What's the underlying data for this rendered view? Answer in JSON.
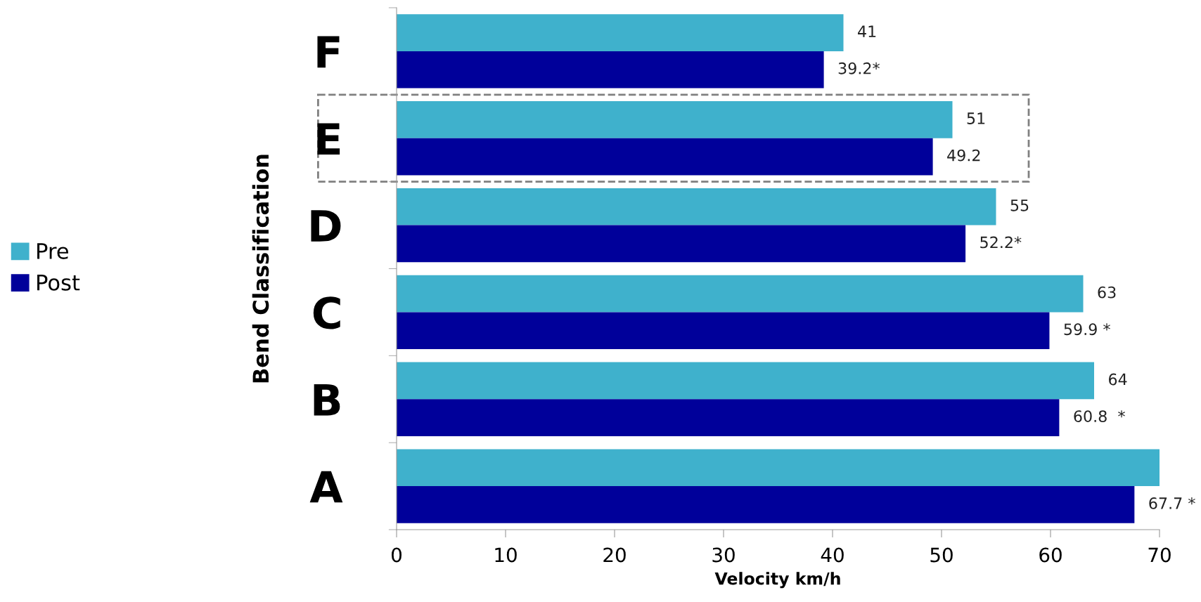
{
  "chart_data": {
    "type": "bar",
    "orientation": "horizontal",
    "xlabel": "Velocity km/h",
    "ylabel": "Bend Classification",
    "categories": [
      "F",
      "E",
      "D",
      "C",
      "B",
      "A"
    ],
    "series": [
      {
        "name": "Pre",
        "color": "#3fb1cc",
        "values": [
          41,
          51,
          55,
          63,
          64,
          70
        ],
        "value_labels": [
          "41",
          "51",
          "55",
          "63",
          "64",
          null
        ]
      },
      {
        "name": "Post",
        "color": "#00009a",
        "values": [
          39.2,
          49.2,
          52.2,
          59.9,
          60.8,
          67.7
        ],
        "value_labels": [
          "39.2*",
          "49.2",
          "52.2*",
          "59.9 *",
          "60.8  *",
          "67.7 *"
        ]
      }
    ],
    "xlim": [
      0,
      70
    ],
    "xticks": [
      0,
      10,
      20,
      30,
      40,
      50,
      60,
      70
    ],
    "grid": false,
    "legend": "left"
  }
}
